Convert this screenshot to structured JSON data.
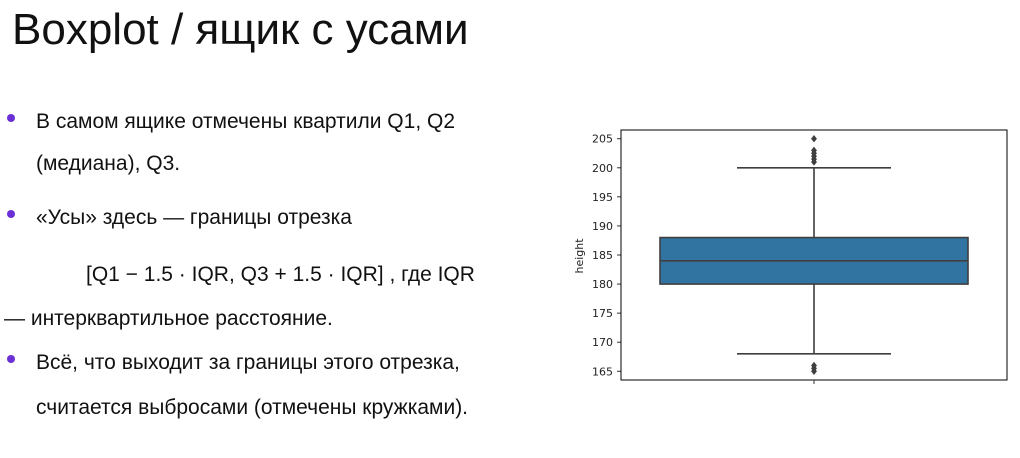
{
  "slide": {
    "title": "Boxplot / ящик с усами",
    "bullet_color": "#6B2FD6",
    "lines": {
      "b1_line1": "В самом ящике отмечены квартили Q1, Q2",
      "b1_line2": "(медиана), Q3.",
      "b2_line1": "«Усы» здесь —   границы отрезка",
      "b2_formula": "[Q1 − 1.5 · IQR, Q3 + 1.5 · IQR] , где IQR",
      "b2_line3": "—   интерквартильное расстояние.",
      "b3_line1": "Всё, что выходит за границы этого отрезка,",
      "b3_line2": "считается выбросами (отмечены кружками)."
    }
  },
  "chart_data": {
    "type": "box",
    "ylabel": "height",
    "ylim": [
      163.5,
      206.5
    ],
    "yticks": [
      165,
      170,
      175,
      180,
      185,
      190,
      195,
      200,
      205
    ],
    "box": {
      "q1": 180,
      "median": 184,
      "q3": 188,
      "whisker_low": 168,
      "whisker_high": 200,
      "outliers_high": [
        201,
        201.5,
        202,
        202.5,
        203,
        205
      ],
      "outliers_low": [
        165,
        165.5,
        166
      ]
    },
    "colors": {
      "box_fill": "#3274A1",
      "lines": "#3F3F3F"
    },
    "grid": false
  }
}
